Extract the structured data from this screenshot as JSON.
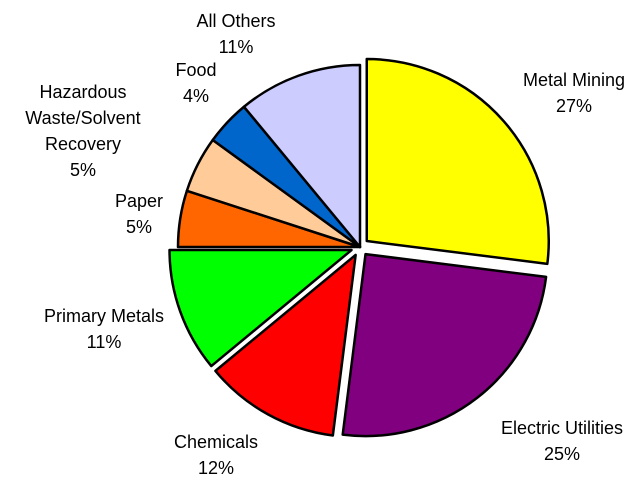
{
  "chart_data": {
    "type": "pie",
    "title": "",
    "legend": "none",
    "slices": [
      {
        "name": "Metal Mining",
        "value": 27,
        "value_label": "27%",
        "color": "#ffff00",
        "exploded": true
      },
      {
        "name": "Electric Utilities",
        "value": 25,
        "value_label": "25%",
        "color": "#800080",
        "exploded": true
      },
      {
        "name": "Chemicals",
        "value": 12,
        "value_label": "12%",
        "color": "#ff0000",
        "exploded": true
      },
      {
        "name": "Primary Metals",
        "value": 11,
        "value_label": "11%",
        "color": "#00ff00",
        "exploded": true
      },
      {
        "name": "Paper",
        "value": 5,
        "value_label": "5%",
        "color": "#ff6600",
        "exploded": false
      },
      {
        "name": "Hazardous Waste/Solvent Recovery",
        "value": 5,
        "value_label": "5%",
        "color": "#ffcc99",
        "exploded": false
      },
      {
        "name": "Food",
        "value": 4,
        "value_label": "4%",
        "color": "#0066cc",
        "exploded": false
      },
      {
        "name": "All Others",
        "value": 11,
        "value_label": "11%",
        "color": "#ccccff",
        "exploded": false
      }
    ]
  }
}
